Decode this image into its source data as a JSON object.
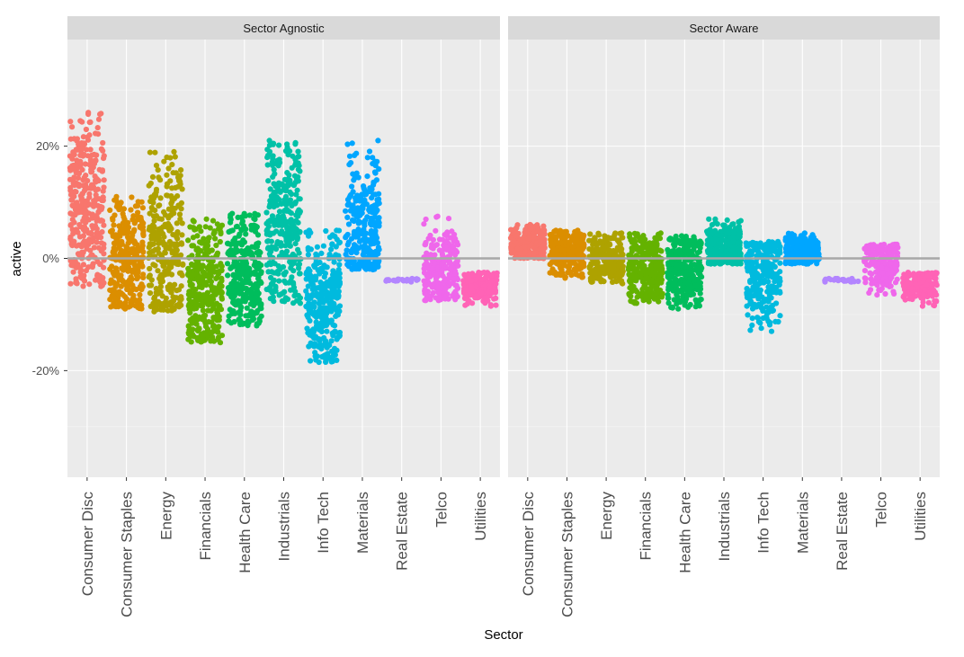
{
  "chart_data": {
    "type": "scatter",
    "style": "jitter strip plot, faceted",
    "xlabel": "Sector",
    "ylabel": "active",
    "ylim": [
      -0.39,
      0.39
    ],
    "yticks": [
      -0.2,
      0,
      0.2
    ],
    "ytick_labels": [
      "-20%",
      "0%",
      "20%"
    ],
    "reference_line_y": 0,
    "grid": true,
    "legend": "none",
    "categories": [
      "Consumer Disc",
      "Consumer Staples",
      "Energy",
      "Financials",
      "Health Care",
      "Industrials",
      "Info Tech",
      "Materials",
      "Real Estate",
      "Telco",
      "Utilities"
    ],
    "colors": [
      "#F8766D",
      "#DB8E00",
      "#AEA200",
      "#64B200",
      "#00BD5C",
      "#00C1A7",
      "#00BADE",
      "#00A6FF",
      "#B385FF",
      "#EF67EB",
      "#FF63B6"
    ],
    "facets": [
      {
        "strip_label": "Sector Agnostic",
        "ranges": [
          {
            "category": "Consumer Disc",
            "min": -0.05,
            "max": 0.26,
            "center": 0.09,
            "n": 340
          },
          {
            "category": "Consumer Staples",
            "min": -0.09,
            "max": 0.11,
            "center": 0.0,
            "n": 300
          },
          {
            "category": "Energy",
            "min": -0.095,
            "max": 0.19,
            "center": 0.02,
            "n": 280
          },
          {
            "category": "Financials",
            "min": -0.15,
            "max": 0.07,
            "center": -0.05,
            "n": 320
          },
          {
            "category": "Health Care",
            "min": -0.12,
            "max": 0.08,
            "center": -0.03,
            "n": 320
          },
          {
            "category": "Industrials",
            "min": -0.08,
            "max": 0.21,
            "center": 0.06,
            "n": 330
          },
          {
            "category": "Info Tech",
            "min": -0.185,
            "max": 0.05,
            "center": -0.08,
            "n": 330
          },
          {
            "category": "Materials",
            "min": -0.02,
            "max": 0.21,
            "center": 0.05,
            "n": 280
          },
          {
            "category": "Real Estate",
            "min": -0.042,
            "max": -0.036,
            "center": -0.039,
            "n": 24
          },
          {
            "category": "Telco",
            "min": -0.075,
            "max": 0.075,
            "center": -0.02,
            "n": 230
          },
          {
            "category": "Utilities",
            "min": -0.085,
            "max": -0.025,
            "center": -0.05,
            "n": 190
          }
        ]
      },
      {
        "strip_label": "Sector Aware",
        "ranges": [
          {
            "category": "Consumer Disc",
            "min": 0.0,
            "max": 0.06,
            "center": 0.025,
            "n": 280
          },
          {
            "category": "Consumer Staples",
            "min": -0.035,
            "max": 0.05,
            "center": 0.01,
            "n": 260
          },
          {
            "category": "Energy",
            "min": -0.045,
            "max": 0.045,
            "center": 0.0,
            "n": 240
          },
          {
            "category": "Financials",
            "min": -0.08,
            "max": 0.045,
            "center": -0.02,
            "n": 300
          },
          {
            "category": "Health Care",
            "min": -0.09,
            "max": 0.04,
            "center": -0.02,
            "n": 300
          },
          {
            "category": "Industrials",
            "min": -0.01,
            "max": 0.07,
            "center": 0.02,
            "n": 280
          },
          {
            "category": "Info Tech",
            "min": -0.13,
            "max": 0.03,
            "center": -0.03,
            "n": 260
          },
          {
            "category": "Materials",
            "min": -0.01,
            "max": 0.045,
            "center": 0.015,
            "n": 240
          },
          {
            "category": "Real Estate",
            "min": -0.042,
            "max": -0.036,
            "center": -0.039,
            "n": 24
          },
          {
            "category": "Telco",
            "min": -0.065,
            "max": 0.025,
            "center": -0.01,
            "n": 220
          },
          {
            "category": "Utilities",
            "min": -0.085,
            "max": -0.025,
            "center": -0.05,
            "n": 190
          }
        ]
      }
    ]
  }
}
